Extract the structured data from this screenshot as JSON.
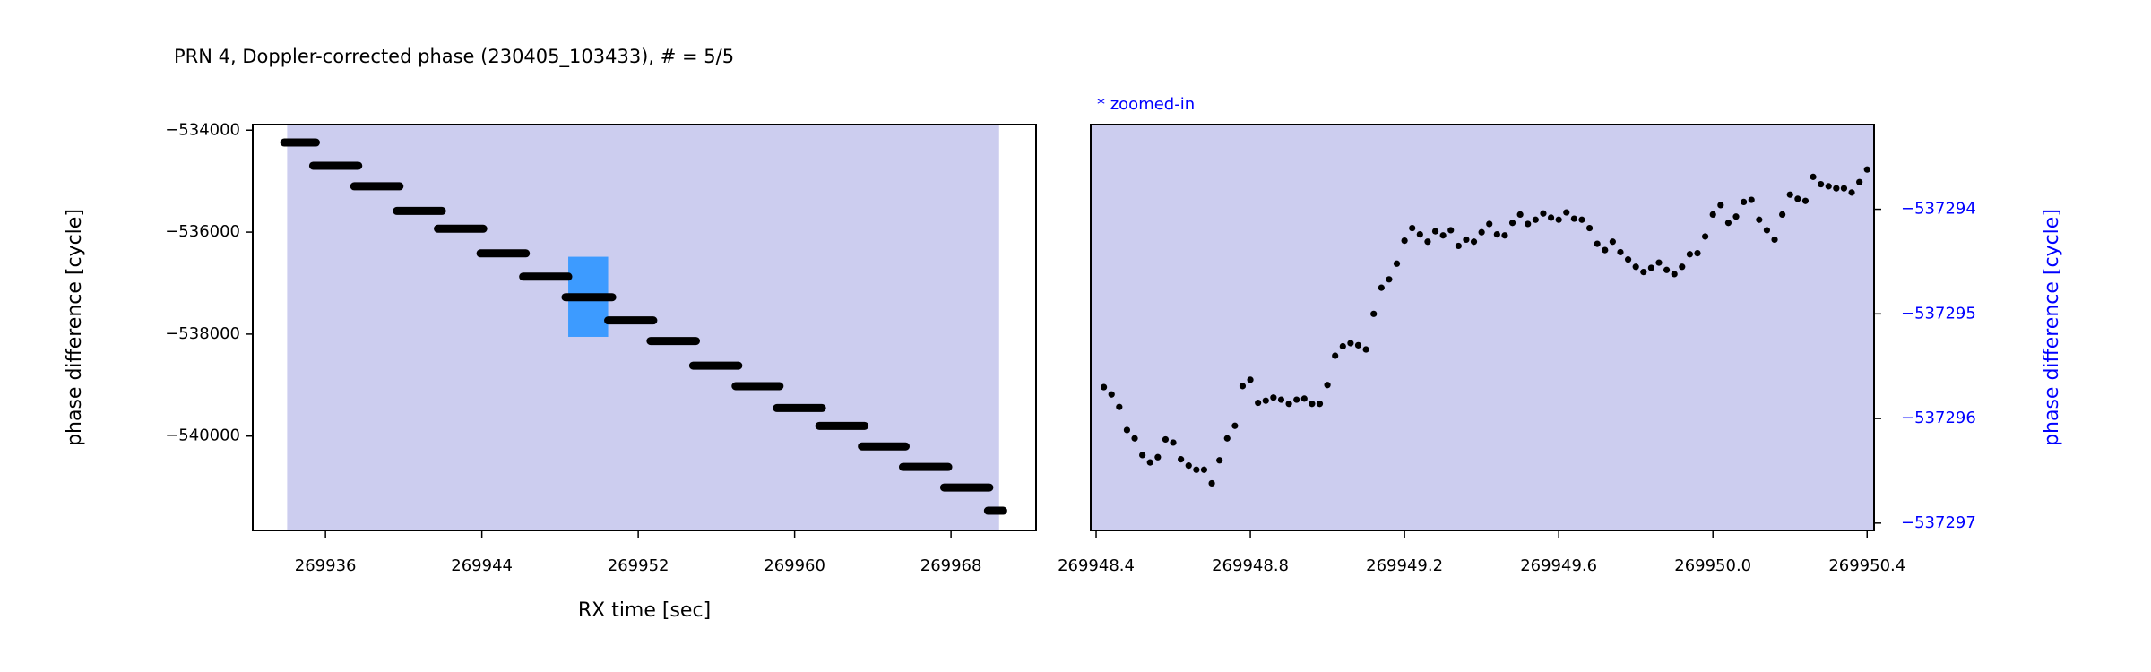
{
  "chart_data": [
    {
      "type": "line",
      "title": "PRN 4, Doppler-corrected phase (230405_103433), # = 5/5",
      "xlabel": "RX time [sec]",
      "ylabel": "phase difference [cycle]",
      "color": "#000000",
      "background": "#ffffff",
      "shaded_xlim": [
        269934.04,
        269970.46
      ],
      "shaded_color": "#cccdef",
      "zoom_box": {
        "x": [
          269948.42,
          269950.46
        ],
        "y": [
          -536483,
          -538054
        ],
        "color": "#3d9bff"
      },
      "x": [
        269933.89,
        269935.51,
        null,
        269935.37,
        269937.68,
        null,
        269937.47,
        269939.79,
        null,
        269939.65,
        269941.96,
        null,
        269941.75,
        269944.07,
        null,
        269943.93,
        269946.25,
        null,
        269946.11,
        269948.42,
        null,
        269948.28,
        269950.67,
        null,
        269950.46,
        269952.77,
        null,
        269952.63,
        269954.95,
        null,
        269954.81,
        269957.12,
        null,
        269956.98,
        269959.23,
        null,
        269959.09,
        269961.4,
        null,
        269961.26,
        269963.58,
        null,
        269963.44,
        269965.68,
        null,
        269965.54,
        269967.86,
        null,
        269967.65,
        269969.96,
        null,
        269969.89,
        269970.67
      ],
      "values": [
        -534242,
        -534242,
        null,
        -534698,
        -534698,
        null,
        -535101,
        -535101,
        null,
        -535584,
        -535584,
        null,
        -535933,
        -535933,
        null,
        -536417,
        -536417,
        null,
        -536873,
        -536873,
        null,
        -537276,
        -537276,
        null,
        -537732,
        -537732,
        null,
        -538135,
        -538135,
        null,
        -538618,
        -538618,
        null,
        -539021,
        -539021,
        null,
        -539450,
        -539450,
        null,
        -539800,
        -539800,
        null,
        -540202,
        -540202,
        null,
        -540605,
        -540605,
        null,
        -541008,
        -541008,
        null,
        -541464,
        -541464
      ],
      "xlim": [
        269932.28,
        269972.35
      ],
      "ylim": [
        -541850,
        -533890
      ],
      "xticks": [
        269936,
        269944,
        269952,
        269960,
        269968
      ],
      "yticks": [
        {
          "value": -534000,
          "label": "−534000"
        },
        {
          "value": -536000,
          "label": "−536000"
        },
        {
          "value": -538000,
          "label": "−538000"
        },
        {
          "value": -540000,
          "label": "−540000"
        }
      ],
      "yaxis_side": "left",
      "axis_color": "#000000"
    },
    {
      "type": "scatter",
      "annotation": "* zoomed-in",
      "annotation_color": "#0000ff",
      "ylabel": "phase difference [cycle]",
      "color": "#000000",
      "background": "#cccdef",
      "x": [
        269948.42,
        269948.44,
        269948.46,
        269948.48,
        269948.5,
        269948.52,
        269948.54,
        269948.56,
        269948.58,
        269948.6,
        269948.62,
        269948.64,
        269948.66,
        269948.68,
        269948.7,
        269948.72,
        269948.74,
        269948.76,
        269948.78,
        269948.8,
        269948.82,
        269948.84,
        269948.86,
        269948.88,
        269948.9,
        269948.92,
        269948.94,
        269948.96,
        269948.98,
        269949.0,
        269949.02,
        269949.04,
        269949.06,
        269949.08,
        269949.1,
        269949.12,
        269949.14,
        269949.16,
        269949.18,
        269949.2,
        269949.22,
        269949.24,
        269949.26,
        269949.28,
        269949.3,
        269949.32,
        269949.34,
        269949.36,
        269949.38,
        269949.4,
        269949.42,
        269949.44,
        269949.46,
        269949.48,
        269949.5,
        269949.52,
        269949.54,
        269949.56,
        269949.58,
        269949.6,
        269949.62,
        269949.64,
        269949.66,
        269949.68,
        269949.7,
        269949.72,
        269949.74,
        269949.76,
        269949.78,
        269949.8,
        269949.82,
        269949.84,
        269949.86,
        269949.88,
        269949.9,
        269949.92,
        269949.94,
        269949.96,
        269949.98,
        269950.0,
        269950.02,
        269950.04,
        269950.06,
        269950.08,
        269950.1,
        269950.12,
        269950.14,
        269950.16,
        269950.18,
        269950.2,
        269950.22,
        269950.24,
        269950.26,
        269950.28,
        269950.3,
        269950.32,
        269950.34,
        269950.36,
        269950.38,
        269950.4
      ],
      "values": [
        -537295.7,
        -537295.77,
        -537295.89,
        -537296.11,
        -537296.19,
        -537296.35,
        -537296.42,
        -537296.37,
        -537296.2,
        -537296.23,
        -537296.39,
        -537296.45,
        -537296.49,
        -537296.49,
        -537296.62,
        -537296.4,
        -537296.19,
        -537296.07,
        -537295.69,
        -537295.63,
        -537295.85,
        -537295.83,
        -537295.8,
        -537295.82,
        -537295.86,
        -537295.82,
        -537295.81,
        -537295.86,
        -537295.86,
        -537295.68,
        -537295.4,
        -537295.31,
        -537295.28,
        -537295.3,
        -537295.34,
        -537295.0,
        -537294.75,
        -537294.67,
        -537294.52,
        -537294.3,
        -537294.18,
        -537294.24,
        -537294.31,
        -537294.21,
        -537294.25,
        -537294.2,
        -537294.35,
        -537294.29,
        -537294.31,
        -537294.22,
        -537294.14,
        -537294.24,
        -537294.25,
        -537294.13,
        -537294.05,
        -537294.14,
        -537294.1,
        -537294.04,
        -537294.08,
        -537294.1,
        -537294.03,
        -537294.09,
        -537294.1,
        -537294.18,
        -537294.33,
        -537294.39,
        -537294.31,
        -537294.41,
        -537294.48,
        -537294.55,
        -537294.6,
        -537294.56,
        -537294.51,
        -537294.58,
        -537294.62,
        -537294.55,
        -537294.43,
        -537294.42,
        -537294.26,
        -537294.05,
        -537293.96,
        -537294.13,
        -537294.07,
        -537293.93,
        -537293.91,
        -537294.1,
        -537294.2,
        -537294.29,
        -537294.05,
        -537293.86,
        -537293.9,
        -537293.92,
        -537293.69,
        -537293.76,
        -537293.78,
        -537293.8,
        -537293.8,
        -537293.84,
        -537293.74,
        -537293.62
      ],
      "xlim": [
        269948.386,
        269950.418
      ],
      "ylim": [
        -537297.07,
        -537293.19
      ],
      "xticks": [
        269948.4,
        269948.8,
        269949.2,
        269949.6,
        {
          "value": 269950.0,
          "label": "269950.0"
        },
        269950.4
      ],
      "yticks": [
        {
          "value": -537294,
          "label": "−537294"
        },
        {
          "value": -537295,
          "label": "−537295"
        },
        {
          "value": -537296,
          "label": "−537296"
        },
        {
          "value": -537297,
          "label": "−537297"
        }
      ],
      "yaxis_side": "right",
      "axis_color": "#0000ff"
    }
  ]
}
